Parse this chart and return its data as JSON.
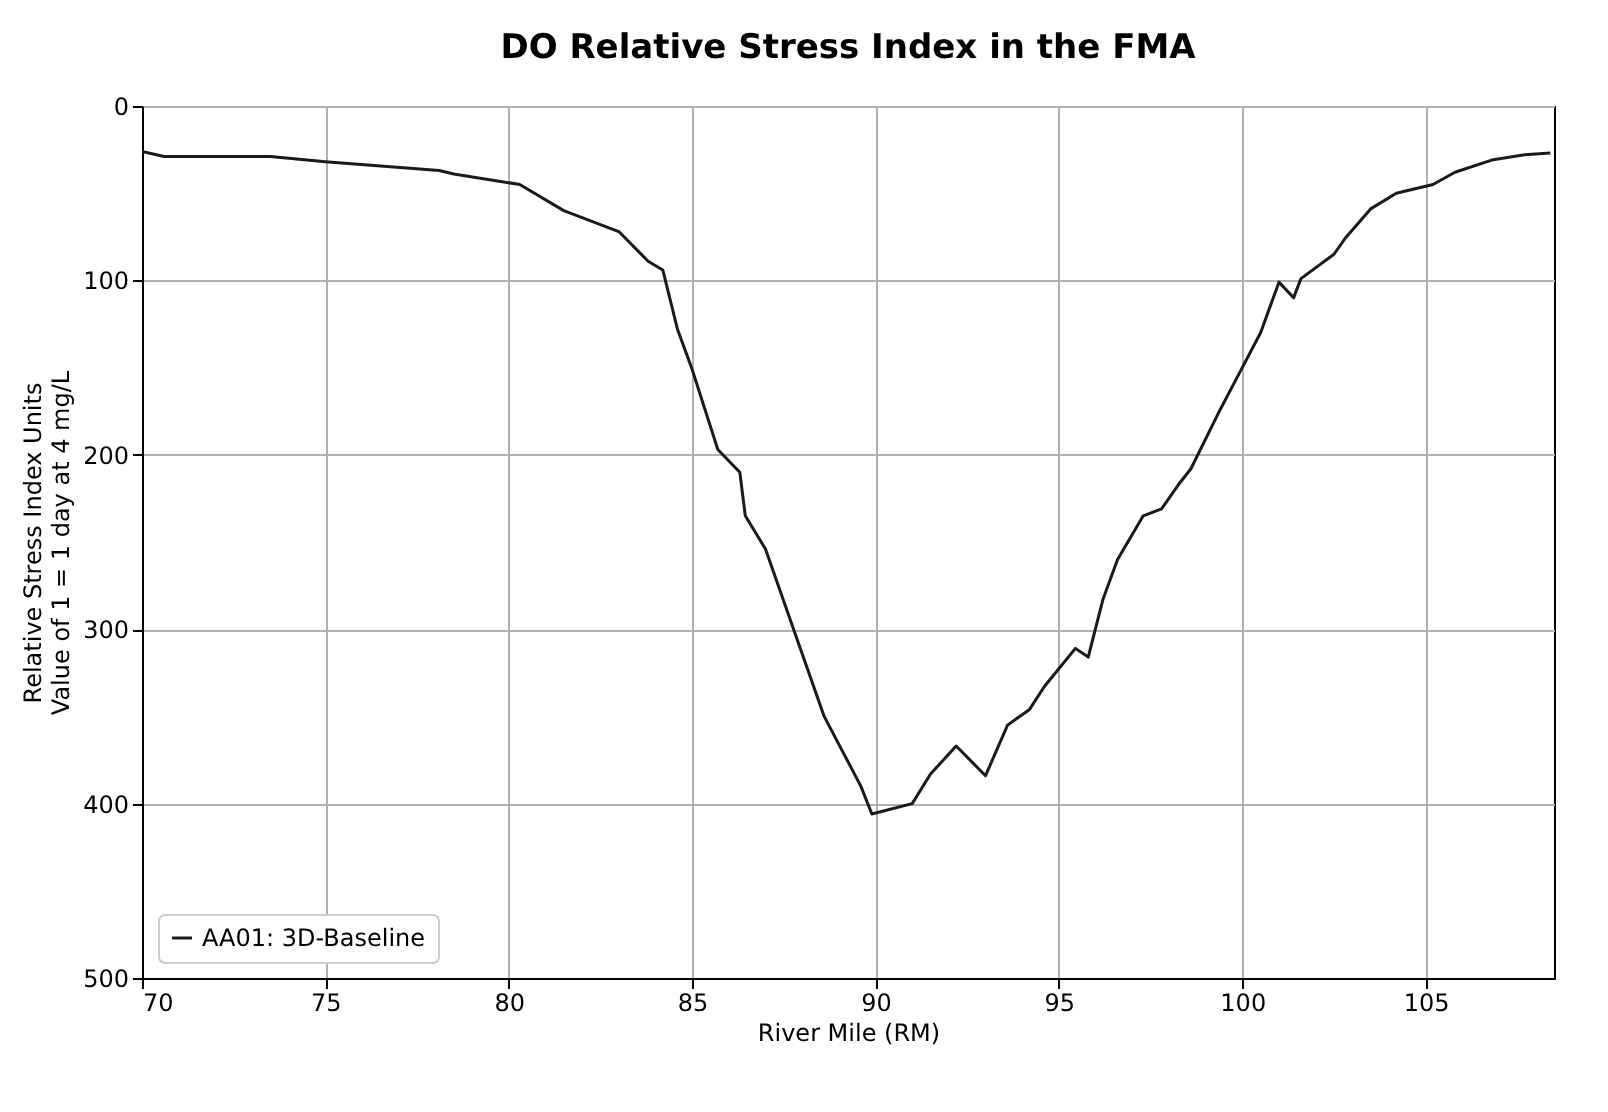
{
  "chart_data": {
    "type": "line",
    "title": "DO Relative Stress Index in the FMA",
    "xlabel": "River Mile (RM)",
    "ylabel": "Relative Stress Index Units\nValue of 1 = 1 day at 4 mg/L",
    "x": [
      70,
      70.6,
      73.5,
      75,
      78.1,
      78.5,
      80.3,
      81.5,
      83.0,
      83.8,
      84.2,
      84.6,
      85.0,
      85.7,
      86.3,
      86.45,
      87.0,
      87.9,
      88.6,
      89.6,
      89.9,
      91.0,
      91.5,
      92.2,
      93.0,
      93.6,
      94.2,
      94.6,
      95.45,
      95.8,
      96.2,
      96.6,
      97.3,
      97.8,
      98.3,
      98.6,
      99.4,
      99.9,
      100.5,
      101.0,
      101.4,
      101.6,
      102.5,
      102.8,
      103.5,
      104.2,
      105.2,
      105.8,
      106.8,
      107.7,
      108.4
    ],
    "series": [
      {
        "name": "AA01: 3D-Baseline",
        "color": "#1a1a1a",
        "values": [
          26,
          29,
          29,
          32,
          37,
          39,
          45,
          60,
          72,
          89,
          94,
          128,
          151,
          197,
          210,
          235,
          254,
          308,
          350,
          390,
          406,
          400,
          383,
          367,
          384,
          355,
          346,
          333,
          311,
          316,
          283,
          260,
          235,
          231,
          216,
          208,
          174,
          154,
          130,
          101,
          110,
          99,
          85,
          76,
          59,
          50,
          45,
          38,
          31,
          28,
          27
        ]
      }
    ],
    "xlim": [
      70,
      108.5
    ],
    "xticks": [
      70,
      75,
      80,
      85,
      90,
      95,
      100,
      105
    ],
    "ylim": [
      500,
      0
    ],
    "yticks": [
      0,
      100,
      200,
      300,
      400,
      500
    ],
    "grid": true,
    "legend": "bottom left",
    "marker": "none",
    "line_style": "solid"
  }
}
